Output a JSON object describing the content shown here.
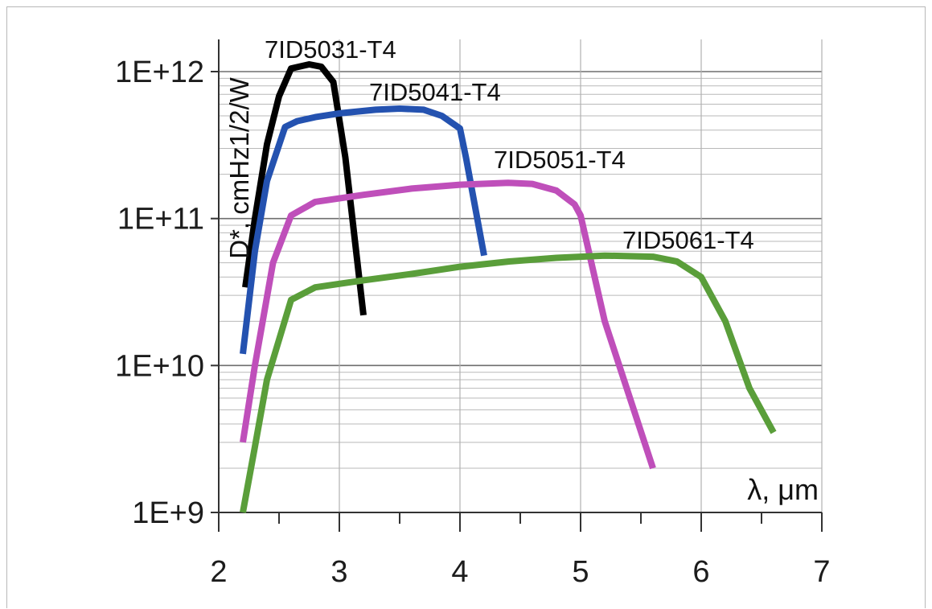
{
  "chart_data": {
    "type": "line",
    "title": "",
    "xlabel": "λ, μm",
    "ylabel": "D*, cmHz1/2/W",
    "x_scale": "linear",
    "y_scale": "log",
    "xlim": [
      2,
      7
    ],
    "ylim": [
      1000000000.0,
      1000000000000.0
    ],
    "x_ticks": [
      "2",
      "3",
      "4",
      "5",
      "6",
      "7"
    ],
    "y_ticks": [
      "1E+9",
      "1E+10",
      "1E+11",
      "1E+12"
    ],
    "grid": true,
    "legend": "inline labels",
    "series": [
      {
        "name": "7ID5031-T4",
        "color": "#000000",
        "points": [
          [
            2.22,
            34000000000.0
          ],
          [
            2.3,
            100000000000.0
          ],
          [
            2.4,
            320000000000.0
          ],
          [
            2.5,
            680000000000.0
          ],
          [
            2.6,
            1050000000000.0
          ],
          [
            2.75,
            1120000000000.0
          ],
          [
            2.85,
            1080000000000.0
          ],
          [
            2.95,
            850000000000.0
          ],
          [
            3.05,
            260000000000.0
          ],
          [
            3.2,
            22000000000.0
          ]
        ]
      },
      {
        "name": "7ID5041-T4",
        "color": "#2452b0",
        "points": [
          [
            2.2,
            12000000000.0
          ],
          [
            2.3,
            60000000000.0
          ],
          [
            2.4,
            180000000000.0
          ],
          [
            2.55,
            420000000000.0
          ],
          [
            2.65,
            460000000000.0
          ],
          [
            2.8,
            490000000000.0
          ],
          [
            3.0,
            520000000000.0
          ],
          [
            3.3,
            550000000000.0
          ],
          [
            3.5,
            560000000000.0
          ],
          [
            3.7,
            550000000000.0
          ],
          [
            3.85,
            500000000000.0
          ],
          [
            4.0,
            410000000000.0
          ],
          [
            4.05,
            260000000000.0
          ],
          [
            4.2,
            56000000000.0
          ]
        ]
      },
      {
        "name": "7ID5051-T4",
        "color": "#bf4fba",
        "points": [
          [
            2.2,
            3000000000.0
          ],
          [
            2.3,
            10000000000.0
          ],
          [
            2.45,
            50000000000.0
          ],
          [
            2.6,
            105000000000.0
          ],
          [
            2.8,
            130000000000.0
          ],
          [
            3.2,
            145000000000.0
          ],
          [
            3.6,
            160000000000.0
          ],
          [
            4.0,
            170000000000.0
          ],
          [
            4.4,
            175000000000.0
          ],
          [
            4.6,
            172000000000.0
          ],
          [
            4.8,
            155000000000.0
          ],
          [
            4.95,
            125000000000.0
          ],
          [
            5.0,
            105000000000.0
          ],
          [
            5.2,
            20000000000.0
          ],
          [
            5.6,
            2000000000.0
          ]
        ]
      },
      {
        "name": "7ID5061-T4",
        "color": "#5a9e3a",
        "points": [
          [
            2.2,
            1000000000.0
          ],
          [
            2.3,
            2800000000.0
          ],
          [
            2.4,
            8000000000.0
          ],
          [
            2.6,
            28000000000.0
          ],
          [
            2.8,
            34000000000.0
          ],
          [
            3.2,
            38000000000.0
          ],
          [
            3.6,
            42000000000.0
          ],
          [
            4.0,
            47000000000.0
          ],
          [
            4.4,
            51000000000.0
          ],
          [
            4.8,
            54000000000.0
          ],
          [
            5.2,
            56000000000.0
          ],
          [
            5.6,
            55000000000.0
          ],
          [
            5.8,
            51000000000.0
          ],
          [
            6.0,
            40000000000.0
          ],
          [
            6.2,
            20000000000.0
          ],
          [
            6.4,
            7000000000.0
          ],
          [
            6.6,
            3500000000.0
          ]
        ]
      }
    ]
  }
}
